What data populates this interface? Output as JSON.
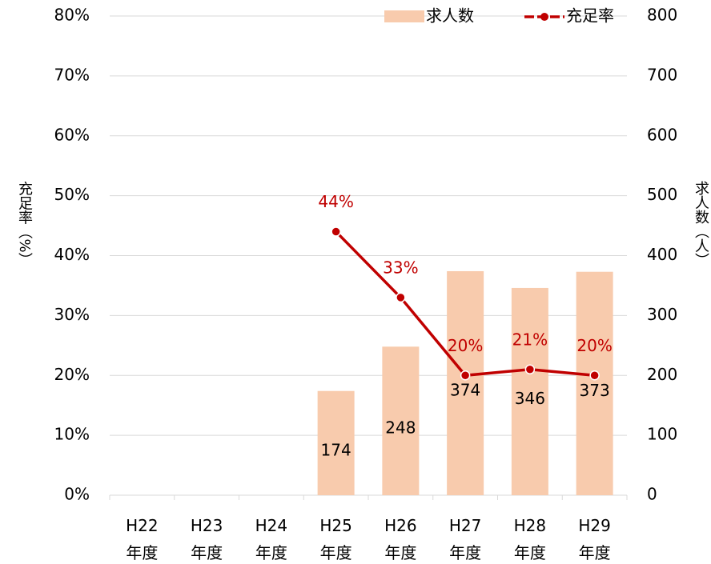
{
  "chart_data": {
    "type": "bar_line",
    "categories": [
      "H22\n年度",
      "H23\n年度",
      "H24\n年度",
      "H25\n年度",
      "H26\n年度",
      "H27\n年度",
      "H28\n年度",
      "H29\n年度"
    ],
    "series": [
      {
        "name": "求人数",
        "type": "bar",
        "axis": "y2",
        "color": "#f8cbad",
        "values": [
          null,
          null,
          null,
          174,
          248,
          374,
          346,
          373
        ]
      },
      {
        "name": "充足率",
        "type": "line",
        "axis": "y",
        "color": "#c00000",
        "values": [
          null,
          null,
          null,
          44,
          33,
          20,
          21,
          20
        ],
        "value_labels": [
          null,
          null,
          null,
          "44%",
          "33%",
          "20%",
          "21%",
          "20%"
        ]
      }
    ],
    "ylabel": "充足率（%）",
    "y2label": "求人数（人）",
    "ylim": [
      0,
      80
    ],
    "yticks": [
      {
        "value": 0,
        "label": "0%"
      },
      {
        "value": 10,
        "label": "10%"
      },
      {
        "value": 20,
        "label": "20%"
      },
      {
        "value": 30,
        "label": "30%"
      },
      {
        "value": 40,
        "label": "40%"
      },
      {
        "value": 50,
        "label": "50%"
      },
      {
        "value": 60,
        "label": "60%"
      },
      {
        "value": 70,
        "label": "70%"
      },
      {
        "value": 80,
        "label": "80%"
      }
    ],
    "y2lim": [
      0,
      800
    ],
    "y2ticks": [
      0,
      100,
      200,
      300,
      400,
      500,
      600,
      700,
      800
    ],
    "grid": true,
    "legend": "top-right"
  }
}
